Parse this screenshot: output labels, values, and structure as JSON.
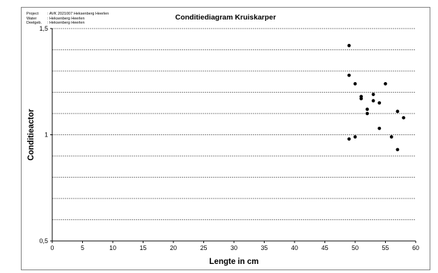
{
  "meta": {
    "rows": [
      {
        "key": "Project",
        "value": ": AVK 2021007 Heksenberg Heerlen"
      },
      {
        "key": "Water",
        "value": ": Heksenberg Heerlen"
      },
      {
        "key": "Deelgeb.",
        "value": ": Heksenberg Heerlen"
      }
    ]
  },
  "chart_data": {
    "type": "scatter",
    "title": "Conditiediagram Kruiskarper",
    "xlabel": "Lengte in cm",
    "ylabel": "Conditieactor",
    "xlim": [
      0,
      60
    ],
    "ylim": [
      0.5,
      1.5
    ],
    "x_ticks": [
      "0",
      "5",
      "10",
      "15",
      "20",
      "25",
      "30",
      "35",
      "40",
      "45",
      "50",
      "55",
      "60"
    ],
    "y_ticks": [
      "0,5",
      "1",
      "1,5"
    ],
    "grid": "horizontal, dashed, every 0.1",
    "colors": {
      "points": "#000000",
      "grid": "#555555"
    },
    "series": [
      {
        "points": [
          {
            "x": 49,
            "y": 1.42
          },
          {
            "x": 49,
            "y": 1.28
          },
          {
            "x": 49,
            "y": 0.98
          },
          {
            "x": 50,
            "y": 1.24
          },
          {
            "x": 50,
            "y": 0.99
          },
          {
            "x": 51,
            "y": 1.18
          },
          {
            "x": 51,
            "y": 1.17
          },
          {
            "x": 52,
            "y": 1.12
          },
          {
            "x": 52,
            "y": 1.1
          },
          {
            "x": 53,
            "y": 1.19
          },
          {
            "x": 53,
            "y": 1.16
          },
          {
            "x": 54,
            "y": 1.15
          },
          {
            "x": 54,
            "y": 1.03
          },
          {
            "x": 55,
            "y": 1.24
          },
          {
            "x": 56,
            "y": 0.99
          },
          {
            "x": 57,
            "y": 1.11
          },
          {
            "x": 57,
            "y": 0.93
          },
          {
            "x": 58,
            "y": 1.08
          }
        ]
      }
    ]
  }
}
